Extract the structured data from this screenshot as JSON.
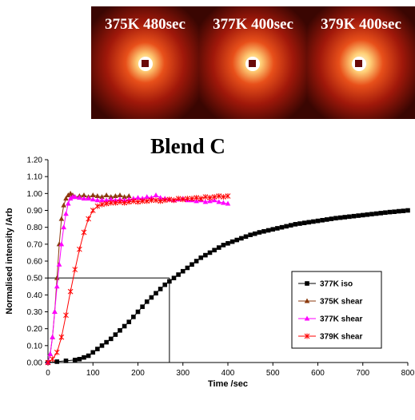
{
  "saxs_panels": [
    {
      "label": "375K 480sec"
    },
    {
      "label": "377K 400sec"
    },
    {
      "label": "379K 400sec"
    }
  ],
  "chart_data": {
    "type": "scatter",
    "title": "Blend C",
    "xlabel": "Time /sec",
    "ylabel": "Normalised intensity /Arb",
    "xlim": [
      0,
      800
    ],
    "ylim": [
      0,
      1.2
    ],
    "xticks": [
      "0",
      "100",
      "200",
      "300",
      "400",
      "500",
      "600",
      "700",
      "800"
    ],
    "yticks": [
      "0.00",
      "0.10",
      "0.20",
      "0.30",
      "0.40",
      "0.50",
      "0.60",
      "0.70",
      "0.80",
      "0.90",
      "1.00",
      "1.10",
      "1.20"
    ],
    "grid": false,
    "legend": "right",
    "series": [
      {
        "name": "377K iso",
        "color": "#000000",
        "marker": "square",
        "x": [
          0,
          20,
          40,
          60,
          70,
          80,
          90,
          100,
          110,
          120,
          130,
          140,
          150,
          160,
          170,
          180,
          190,
          200,
          210,
          220,
          230,
          240,
          250,
          260,
          270,
          280,
          290,
          300,
          310,
          320,
          330,
          340,
          350,
          360,
          370,
          380,
          390,
          400,
          410,
          420,
          430,
          440,
          450,
          460,
          470,
          480,
          490,
          500,
          510,
          520,
          530,
          540,
          550,
          560,
          570,
          580,
          590,
          600,
          610,
          620,
          630,
          640,
          650,
          660,
          670,
          680,
          690,
          700,
          710,
          720,
          730,
          740,
          750,
          760,
          770,
          780,
          790,
          800
        ],
        "y": [
          0.0,
          0.005,
          0.01,
          0.015,
          0.02,
          0.03,
          0.04,
          0.06,
          0.08,
          0.1,
          0.12,
          0.14,
          0.165,
          0.19,
          0.215,
          0.24,
          0.27,
          0.3,
          0.33,
          0.36,
          0.385,
          0.41,
          0.435,
          0.46,
          0.48,
          0.5,
          0.52,
          0.54,
          0.56,
          0.58,
          0.6,
          0.62,
          0.635,
          0.65,
          0.665,
          0.68,
          0.695,
          0.705,
          0.715,
          0.725,
          0.735,
          0.745,
          0.755,
          0.762,
          0.77,
          0.776,
          0.782,
          0.788,
          0.794,
          0.8,
          0.806,
          0.812,
          0.818,
          0.822,
          0.826,
          0.83,
          0.834,
          0.838,
          0.842,
          0.846,
          0.85,
          0.854,
          0.857,
          0.86,
          0.863,
          0.866,
          0.869,
          0.872,
          0.875,
          0.878,
          0.881,
          0.884,
          0.887,
          0.89,
          0.892,
          0.895,
          0.897,
          0.9
        ]
      },
      {
        "name": "375K shear",
        "color": "#8B3A0E",
        "marker": "triangle",
        "x": [
          0,
          5,
          10,
          15,
          20,
          25,
          30,
          35,
          40,
          45,
          50,
          55,
          60,
          70,
          80,
          90,
          100,
          110,
          120,
          130,
          140,
          150,
          160,
          170,
          180
        ],
        "y": [
          0.0,
          0.05,
          0.15,
          0.3,
          0.5,
          0.7,
          0.85,
          0.93,
          0.97,
          0.99,
          1.0,
          0.99,
          0.98,
          0.985,
          0.99,
          0.98,
          0.99,
          0.985,
          0.98,
          0.99,
          0.98,
          0.985,
          0.99,
          0.98,
          0.985
        ]
      },
      {
        "name": "377K shear",
        "color": "#FF00FF",
        "marker": "triangle",
        "x": [
          0,
          5,
          10,
          15,
          20,
          25,
          30,
          35,
          40,
          45,
          50,
          55,
          60,
          70,
          80,
          90,
          100,
          110,
          120,
          130,
          140,
          150,
          160,
          170,
          180,
          190,
          200,
          210,
          220,
          230,
          240,
          250,
          260,
          270,
          280,
          290,
          300,
          310,
          320,
          330,
          340,
          350,
          360,
          370,
          380,
          390,
          400
        ],
        "y": [
          0.0,
          0.05,
          0.15,
          0.3,
          0.45,
          0.58,
          0.7,
          0.8,
          0.88,
          0.94,
          0.97,
          0.98,
          0.98,
          0.975,
          0.97,
          0.97,
          0.965,
          0.96,
          0.96,
          0.96,
          0.965,
          0.96,
          0.965,
          0.96,
          0.965,
          0.97,
          0.975,
          0.97,
          0.98,
          0.975,
          0.99,
          0.975,
          0.97,
          0.965,
          0.96,
          0.965,
          0.97,
          0.96,
          0.96,
          0.955,
          0.96,
          0.95,
          0.955,
          0.96,
          0.95,
          0.945,
          0.94
        ]
      },
      {
        "name": "379K shear",
        "color": "#FF0000",
        "marker": "star",
        "x": [
          0,
          10,
          20,
          30,
          40,
          50,
          60,
          70,
          80,
          90,
          100,
          110,
          120,
          130,
          140,
          150,
          160,
          170,
          180,
          190,
          200,
          210,
          220,
          230,
          240,
          250,
          260,
          270,
          280,
          290,
          300,
          310,
          320,
          330,
          340,
          350,
          360,
          370,
          380,
          390,
          400
        ],
        "y": [
          0.0,
          0.02,
          0.06,
          0.15,
          0.28,
          0.42,
          0.55,
          0.67,
          0.77,
          0.85,
          0.9,
          0.925,
          0.935,
          0.94,
          0.945,
          0.945,
          0.95,
          0.945,
          0.95,
          0.955,
          0.95,
          0.955,
          0.955,
          0.96,
          0.96,
          0.955,
          0.96,
          0.965,
          0.96,
          0.97,
          0.965,
          0.97,
          0.97,
          0.975,
          0.97,
          0.98,
          0.975,
          0.98,
          0.985,
          0.98,
          0.985
        ]
      }
    ]
  }
}
